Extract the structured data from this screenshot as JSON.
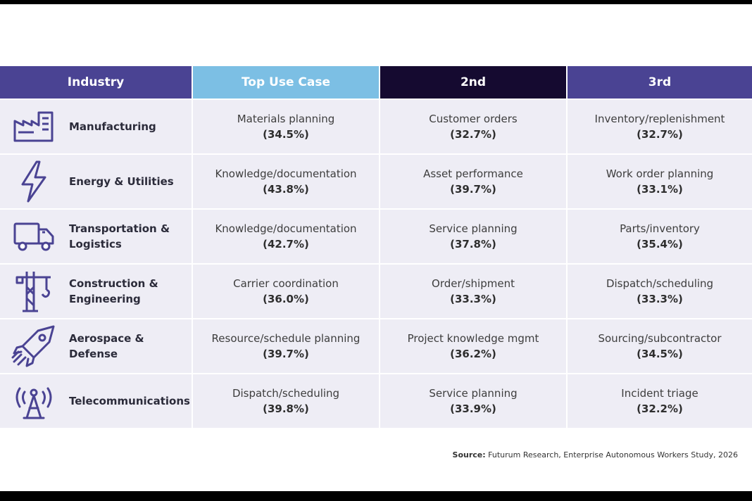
{
  "header": {
    "industry": "Industry",
    "top": "Top Use Case",
    "second": "2nd",
    "third": "3rd"
  },
  "rows": [
    {
      "icon": "factory-icon",
      "industry": "Manufacturing",
      "top": {
        "label": "Materials planning",
        "pct": "(34.5%)"
      },
      "second": {
        "label": "Customer orders",
        "pct": "(32.7%)"
      },
      "third": {
        "label": "Inventory/replenishment",
        "pct": "(32.7%)"
      }
    },
    {
      "icon": "lightning-bolt-icon",
      "industry": "Energy & Utilities",
      "top": {
        "label": "Knowledge/documentation",
        "pct": "(43.8%)"
      },
      "second": {
        "label": "Asset performance",
        "pct": "(39.7%)"
      },
      "third": {
        "label": "Work order planning",
        "pct": "(33.1%)"
      }
    },
    {
      "icon": "truck-icon",
      "industry": "Transportation & Logistics",
      "top": {
        "label": "Knowledge/documentation",
        "pct": "(42.7%)"
      },
      "second": {
        "label": "Service planning",
        "pct": "(37.8%)"
      },
      "third": {
        "label": "Parts/inventory",
        "pct": "(35.4%)"
      }
    },
    {
      "icon": "crane-icon",
      "industry": "Construction & Engineering",
      "top": {
        "label": "Carrier coordination",
        "pct": "(36.0%)"
      },
      "second": {
        "label": "Order/shipment",
        "pct": "(33.3%)"
      },
      "third": {
        "label": "Dispatch/scheduling",
        "pct": "(33.3%)"
      }
    },
    {
      "icon": "rocket-icon",
      "industry": "Aerospace & Defense",
      "top": {
        "label": "Resource/schedule planning",
        "pct": "(39.7%)"
      },
      "second": {
        "label": "Project knowledge mgmt",
        "pct": "(36.2%)"
      },
      "third": {
        "label": "Sourcing/subcontractor",
        "pct": "(34.5%)"
      }
    },
    {
      "icon": "antenna-tower-icon",
      "industry": "Telecommunications",
      "top": {
        "label": "Dispatch/scheduling",
        "pct": "(39.8%)"
      },
      "second": {
        "label": "Service planning",
        "pct": "(33.9%)"
      },
      "third": {
        "label": "Incident triage",
        "pct": "(32.2%)"
      }
    }
  ],
  "source": {
    "label": "Source:",
    "text": "Futurum Research, Enterprise Autonomous Workers Study, 2026"
  },
  "colors": {
    "accent_purple": "#4a4393",
    "accent_blue": "#7cbfe4",
    "dark_navy": "#150a30",
    "cell_bg": "#eeedf5"
  }
}
